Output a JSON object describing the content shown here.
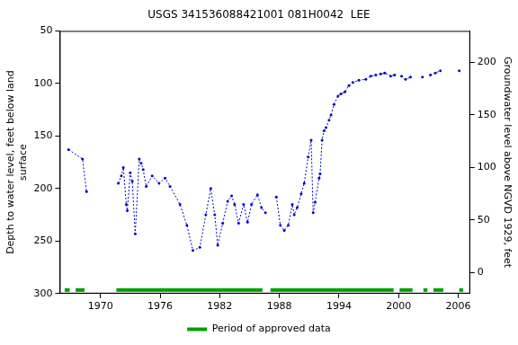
{
  "chart_data": {
    "type": "line",
    "title": "USGS 341536088421001 081H0042  LEE",
    "y_label": [
      "Depth to water level, feet below land",
      "surface"
    ],
    "y2_label": "Groundwater level above NGVD 1929, feet",
    "x": [
      1966.8,
      1968.2,
      1968.6,
      1970.0,
      1971.8,
      1972.1,
      1972.3,
      1972.6,
      1972.7,
      1973.0,
      1973.2,
      1973.5,
      1973.9,
      1974.1,
      1974.3,
      1974.6,
      1975.2,
      1975.9,
      1976.5,
      1977.0,
      1978.0,
      1978.7,
      1979.3,
      1980.0,
      1980.6,
      1981.1,
      1981.5,
      1981.8,
      1982.3,
      1982.8,
      1983.2,
      1983.5,
      1983.9,
      1984.4,
      1984.8,
      1985.2,
      1985.8,
      1986.2,
      1986.6,
      1987.0,
      1987.7,
      1988.1,
      1988.5,
      1988.9,
      1989.3,
      1989.5,
      1989.8,
      1990.2,
      1990.5,
      1990.9,
      1991.2,
      1991.4,
      1991.6,
      1992.0,
      1992.1,
      1992.3,
      1992.5,
      1992.7,
      1993.0,
      1993.2,
      1993.5,
      1993.9,
      1994.2,
      1994.6,
      1995.0,
      1995.4,
      1996.0,
      1996.7,
      1997.2,
      1997.7,
      1998.2,
      1998.6,
      1999.2,
      1999.6,
      2000.0,
      2000.3,
      2000.7,
      2001.2,
      2001.6,
      2002.4,
      2002.9,
      2003.2,
      2003.7,
      2004.2,
      2005.0,
      2006.1
    ],
    "values": [
      163,
      172,
      203,
      null,
      195,
      188,
      180,
      215,
      221,
      185,
      193,
      243,
      172,
      176,
      182,
      198,
      188,
      195,
      190,
      198,
      215,
      235,
      259,
      256,
      225,
      200,
      225,
      254,
      233,
      212,
      207,
      215,
      233,
      215,
      232,
      215,
      206,
      218,
      223,
      null,
      208,
      235,
      240,
      235,
      215,
      225,
      218,
      205,
      195,
      170,
      154,
      223,
      213,
      190,
      186,
      154,
      145,
      142,
      135,
      130,
      120,
      112,
      110,
      108,
      102,
      99,
      97,
      96,
      93,
      92,
      91,
      90,
      93,
      92,
      null,
      93,
      96,
      94,
      null,
      94,
      null,
      92,
      90,
      88,
      null,
      88
    ],
    "color": "#0000cc",
    "marker": "circle",
    "line_style": "dotted",
    "xlim": [
      1965.9,
      2007.2
    ],
    "xticks": [
      1970,
      1976,
      1982,
      1988,
      1994,
      2000,
      2006
    ],
    "ylim": [
      300,
      50
    ],
    "yticks": [
      50,
      100,
      150,
      200,
      250,
      300
    ],
    "y2lim": [
      -20,
      230
    ],
    "y2ticks": [
      0,
      50,
      100,
      150,
      200
    ],
    "approved_periods": {
      "name": "Period of approved data",
      "color": "#00a000",
      "ranges": [
        [
          1966.4,
          1966.9
        ],
        [
          1967.5,
          1968.4
        ],
        [
          1971.6,
          1986.3
        ],
        [
          1987.1,
          1999.5
        ],
        [
          2000.1,
          2001.4
        ],
        [
          2002.5,
          2002.9
        ],
        [
          2003.5,
          2004.5
        ],
        [
          2006.1,
          2006.5
        ]
      ]
    },
    "grid": false,
    "legend": "bottom"
  }
}
